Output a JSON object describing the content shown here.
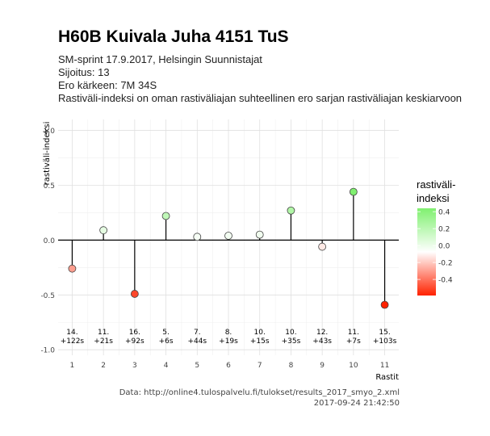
{
  "title": "H60B Kuivala Juha 4151 TuS",
  "subtitle_lines": [
    "SM-sprint 17.9.2017, Helsingin Suunnistajat",
    "Sijoitus: 13",
    "Ero kärkeen: 7M 34S",
    "Rastiväli-indeksi on oman rastiväliajan suhteellinen ero sarjan rastiväliajan keskiarvoon"
  ],
  "caption_lines": [
    "Data: http://online4.tulospalvelu.fi/tulokset/results_2017_smyo_2.xml",
    "2017-09-24 21:42:50"
  ],
  "chart_data": {
    "type": "lollipop",
    "xlabel": "Rastit",
    "ylabel": "rastiväli-indeksi",
    "ylim": [
      -1.0,
      1.0
    ],
    "y_ticks": [
      -1.0,
      -0.5,
      0.0,
      0.5,
      1.0
    ],
    "y_tick_labels": [
      "-1.0",
      "-0.5",
      "0.0",
      "0.5",
      "1.0"
    ],
    "x": [
      1,
      2,
      3,
      4,
      5,
      6,
      7,
      8,
      9,
      10,
      11
    ],
    "values": [
      -0.26,
      0.09,
      -0.49,
      0.22,
      0.03,
      0.04,
      0.05,
      0.27,
      -0.06,
      0.44,
      -0.59
    ],
    "control_labels": [
      "14.",
      "11.",
      "16.",
      "5.",
      "7.",
      "8.",
      "10.",
      "10.",
      "12.",
      "11.",
      "15."
    ],
    "time_labels": [
      "+122s",
      "+21s",
      "+92s",
      "+6s",
      "+44s",
      "+19s",
      "+15s",
      "+35s",
      "+43s",
      "+7s",
      "+103s"
    ],
    "grid": true,
    "legend": {
      "title_lines": [
        "rastiväli-",
        "indeksi"
      ],
      "ticks": [
        0.4,
        0.2,
        0.0,
        -0.2,
        -0.4
      ],
      "tick_labels": [
        "0.4",
        "0.2",
        "0.0",
        "-0.2",
        "-0.4"
      ],
      "range": [
        -0.59,
        0.44
      ],
      "placement": "right"
    },
    "colors": {
      "negative": "#ff2200",
      "mid": "#ffffff",
      "positive": "#80f070"
    }
  }
}
